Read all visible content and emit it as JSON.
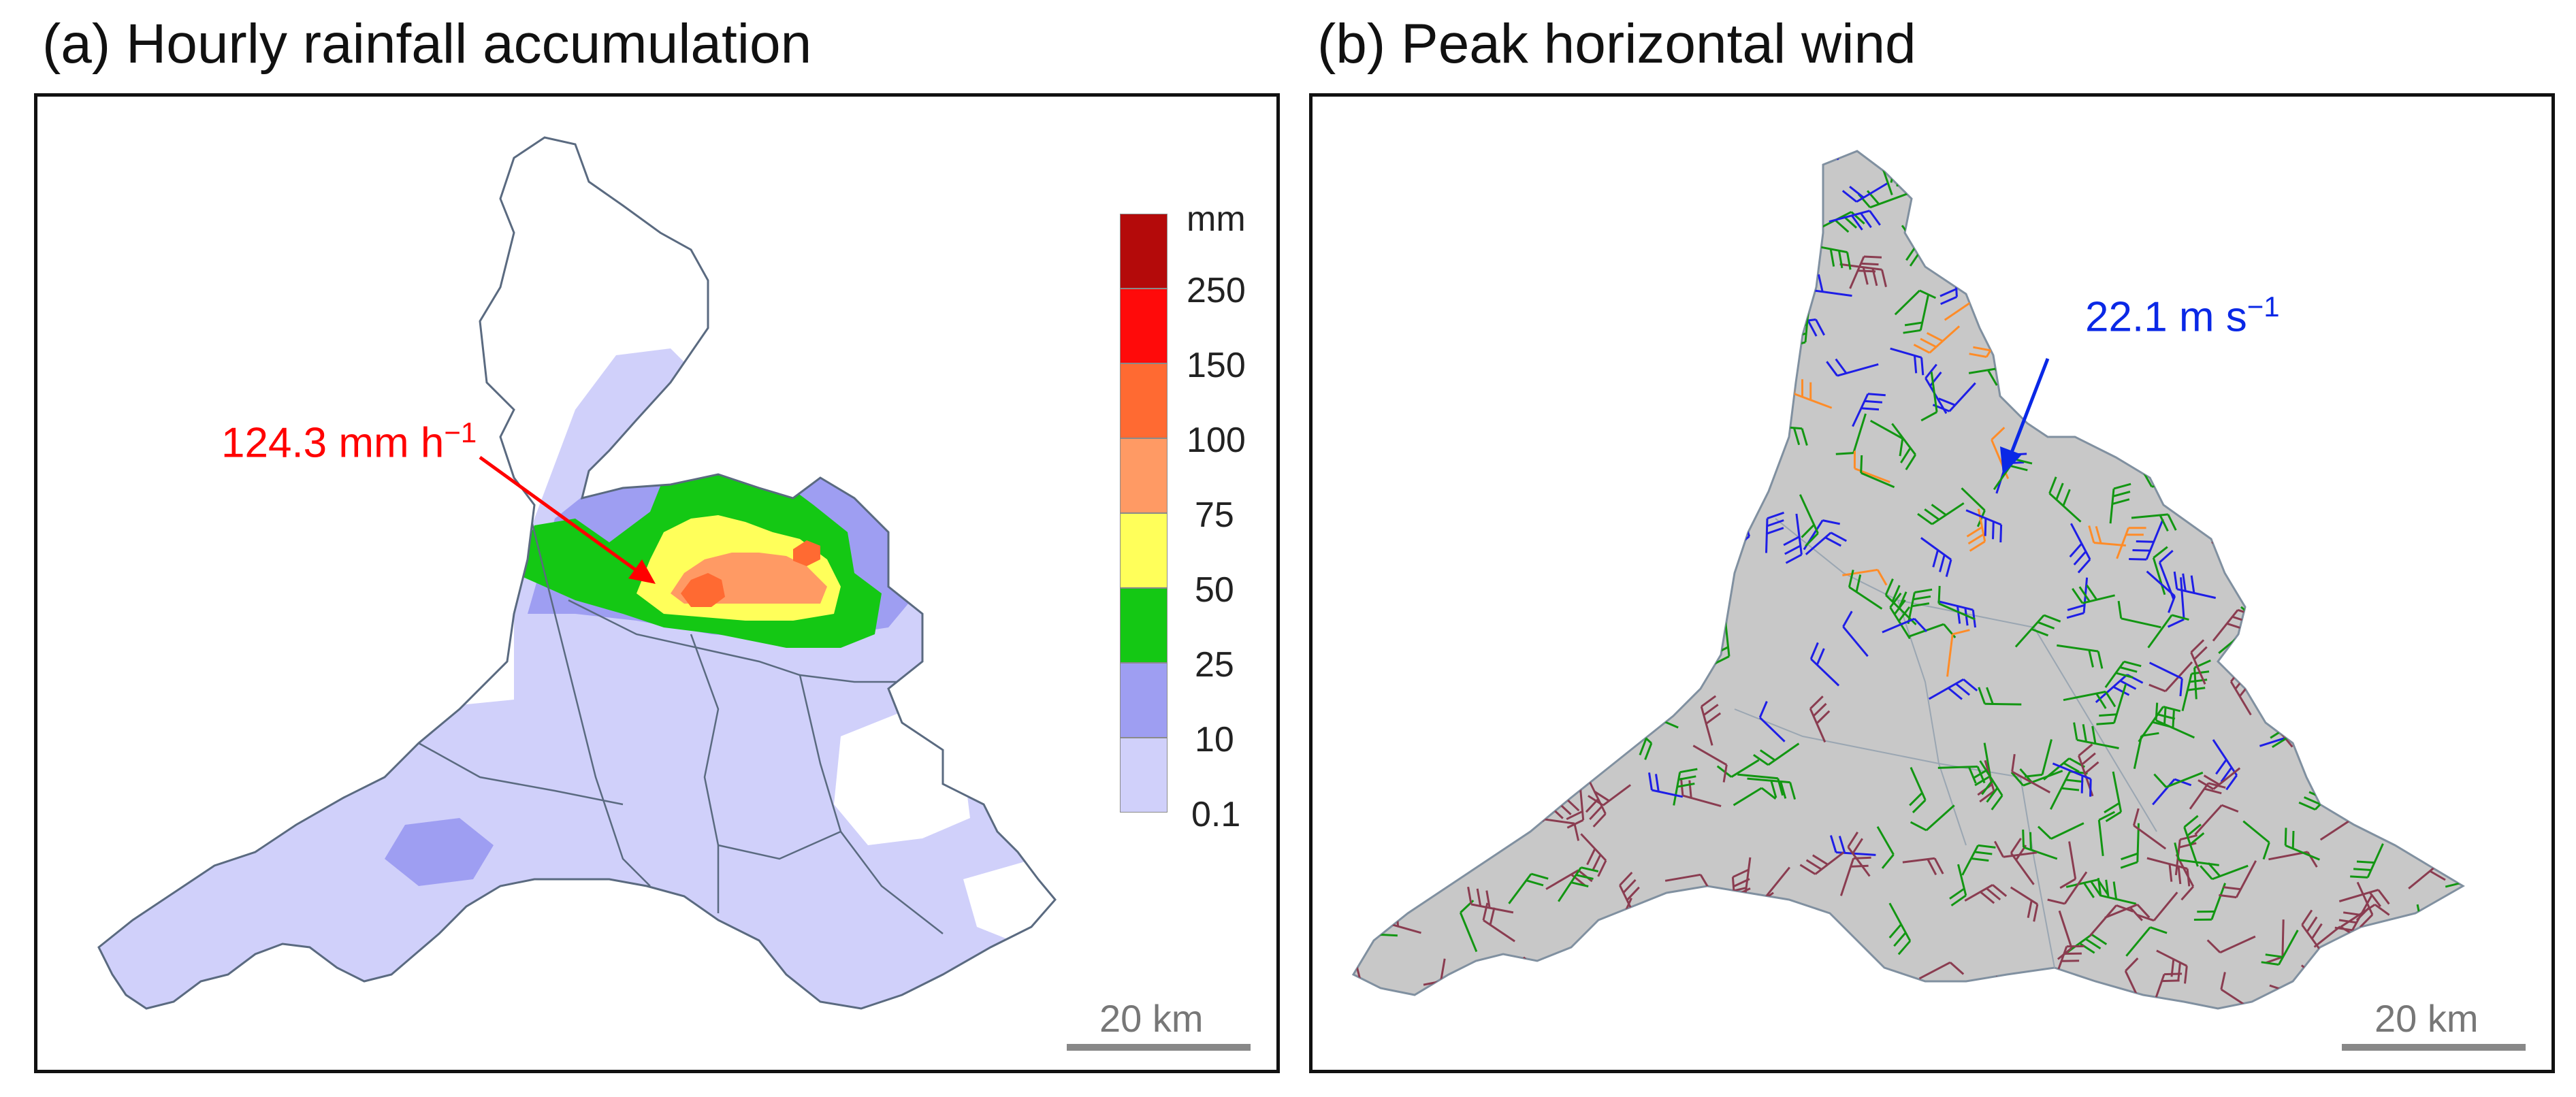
{
  "panel_a": {
    "title": "(a) Hourly rainfall accumulation",
    "annotation": {
      "value": "124.3 mm h",
      "exponent": "−1",
      "color": "#ff0000"
    },
    "legend": {
      "unit": "mm",
      "bins": [
        {
          "label": "250",
          "color": "#b40a0a"
        },
        {
          "label": "150",
          "color": "#ff0a0a"
        },
        {
          "label": "100",
          "color": "#ff6a32"
        },
        {
          "label": "75",
          "color": "#ff9a64"
        },
        {
          "label": "50",
          "color": "#ffff5a"
        },
        {
          "label": "25",
          "color": "#14c814"
        },
        {
          "label": "10",
          "color": "#9e9ef2"
        },
        {
          "label": "0.1",
          "color": "#d0d0fa"
        }
      ]
    },
    "scale_bar": "20 km"
  },
  "panel_b": {
    "title": "(b) Peak horizontal wind",
    "annotation": {
      "value": "22.1 m s",
      "exponent": "−1",
      "color": "#0a28e6"
    },
    "scale_bar": "20 km",
    "barb_colors": {
      "weak": "#8a3c50",
      "moderate": "#129612",
      "strong": "#1e1ee6",
      "peak": "#ff8c28"
    }
  }
}
